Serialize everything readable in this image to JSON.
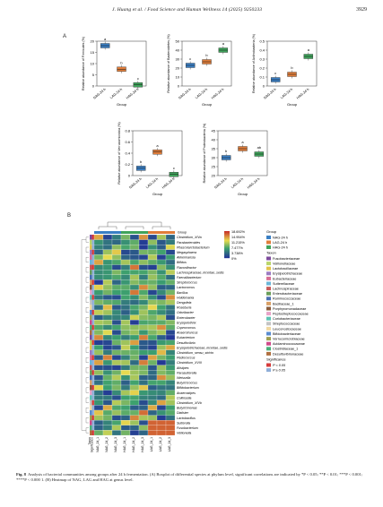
{
  "header": {
    "title": "J. Huang et al. / Food Science and Human Wellness 14 (2025) 9250233",
    "page_number": "3929"
  },
  "panel_a_label": "A",
  "panel_b_label": "B",
  "boxplots": [
    {
      "ylabel": "Relative abundance of Firmicutes (%)",
      "yticks": [
        0,
        5,
        10,
        15,
        20
      ],
      "ymax": 20,
      "groups": [
        "NAG-24 h",
        "LAG-24 h",
        "HAG-24 h"
      ],
      "xlabel": "Group",
      "medians": [
        18,
        7.5,
        0.5
      ],
      "letters": [
        "a",
        "b",
        "c"
      ]
    },
    {
      "ylabel": "Relative abundance of Bacteroidetes (%)",
      "yticks": [
        0,
        10,
        20,
        30,
        40,
        50
      ],
      "ymax": 50,
      "groups": [
        "NAG-24 h",
        "LAG-24 h",
        "HAG-24 h"
      ],
      "xlabel": "Group",
      "medians": [
        23,
        27,
        40
      ],
      "letters": [
        "c",
        "b",
        "a"
      ]
    },
    {
      "ylabel": "Relative abundance of Actinobacteria (%)",
      "yticks": [
        0.0,
        0.1,
        0.2,
        0.3,
        0.4,
        0.5
      ],
      "ymax": 0.5,
      "groups": [
        "NAG-24 h",
        "LAG-24 h",
        "HAG-24 h"
      ],
      "xlabel": "Group",
      "medians": [
        0.07,
        0.13,
        0.33
      ],
      "letters": [
        "c",
        "b",
        "a"
      ]
    },
    {
      "ylabel": "Relative abundance of Verrucomicrobia (%)",
      "yticks": [
        0.0,
        0.2,
        0.4,
        0.6,
        0.8
      ],
      "ymax": 0.8,
      "groups": [
        "NAG-24 h",
        "LAG-24 h",
        "HAG-24 h"
      ],
      "xlabel": "Group",
      "medians": [
        0.13,
        0.42,
        0.02
      ],
      "letters": [
        "b",
        "a",
        "c"
      ]
    },
    {
      "ylabel": "Relative abundance of Proteobacteria (%)",
      "yticks": [
        20,
        25,
        30,
        35,
        40,
        45
      ],
      "ymax": 45,
      "ymin": 20,
      "groups": [
        "NAG-24 h",
        "LAG-24 h",
        "HAG-24 h"
      ],
      "xlabel": "Group",
      "medians": [
        30,
        35,
        32
      ],
      "letters": [
        "b",
        "a",
        "ab"
      ]
    }
  ],
  "heatmap": {
    "genera": [
      "Clostridium_XIVa",
      "Parabacteroides",
      "Phascolarctobacterium",
      "Megasphaera",
      "Akkermansia",
      "Bifidus",
      "Flavonifractor",
      "Lachnospiraceae_incertae_sedis",
      "Faecalibacterium",
      "Streptococcus",
      "Lactococcus",
      "Bacillus",
      "Holdemania",
      "Dengofela",
      "Roseburia",
      "Odoribacter",
      "Enterobacter",
      "Erysipelothrix",
      "Coprococcus",
      "Anaerotruncus",
      "Eubacterium",
      "Desulfovibrio",
      "Erysipelotrichaceae_incertae_sedis",
      "Clostridium_sensu_stricto",
      "Pediococcus",
      "Clostridium_XVIII",
      "Alistipes",
      "Parasutterella",
      "Weissella",
      "Butyricicoccus",
      "Bifidobacterium",
      "Anaerostipes",
      "Collinsella",
      "Clostridium_XIVb",
      "Butyricimonas",
      "Dialister",
      "Lactobacillus",
      "Sutterella",
      "Fusobacterium",
      "Veillonella"
    ],
    "samples": [
      "NAG_24_1",
      "NAG_24_2",
      "NAG_24_3",
      "HAG_24_1",
      "HAG_24_2",
      "HAG_24_3",
      "LAG_24_1",
      "LAG_24_2",
      "LAG_24_3"
    ],
    "bottom_labels": [
      "Taxon",
      "Significance"
    ],
    "top_label": "Group",
    "scale_labels": [
      "18.692%",
      "14.954%",
      "11.215%",
      "7.477%",
      "3.738%",
      "0%"
    ],
    "legend_group_title": "Group",
    "legend_groups": [
      {
        "name": "NAG-24 h",
        "color": "#3a7fc4"
      },
      {
        "name": "LAG-24 h",
        "color": "#e07d3a"
      },
      {
        "name": "HAG-24 h",
        "color": "#3fa35b"
      }
    ],
    "legend_taxon_title": "Taxon",
    "legend_taxa": [
      {
        "name": "Fusobacteriaceae",
        "color": "#7e4b9e"
      },
      {
        "name": "Veillonellaceae",
        "color": "#b9d56a"
      },
      {
        "name": "Lactobacillaceae",
        "color": "#e3c24a"
      },
      {
        "name": "Erysipelotrichaceae",
        "color": "#9b7bc2"
      },
      {
        "name": "Eubacteriaceae",
        "color": "#d86f95"
      },
      {
        "name": "Sutterellaceae",
        "color": "#6bb6d8"
      },
      {
        "name": "Lachnospiraceae",
        "color": "#c85a5a"
      },
      {
        "name": "Enterobacteriaceae",
        "color": "#6a9e5a"
      },
      {
        "name": "Ruminococcaceae",
        "color": "#4a6fb2"
      },
      {
        "name": "Bacillaceae_1",
        "color": "#d9a066"
      },
      {
        "name": "Porphyromonadaceae",
        "color": "#8a5c3c"
      },
      {
        "name": "Peptostreptococcaceae",
        "color": "#e8a3c8"
      },
      {
        "name": "Coriobacteriaceae",
        "color": "#5ec3b4"
      },
      {
        "name": "Streptococcaceae",
        "color": "#c4c4c4"
      },
      {
        "name": "Leuconostocaceae",
        "color": "#f0d8a0"
      },
      {
        "name": "Bifidobacteriaceae",
        "color": "#5a8ccf"
      },
      {
        "name": "Verrucomicrobiaceae",
        "color": "#a0a050"
      },
      {
        "name": "Acidaminococcaceae",
        "color": "#d04a8a"
      },
      {
        "name": "Clostridiaceae_1",
        "color": "#4ab07a"
      },
      {
        "name": "Desulfovibrionaceae",
        "color": "#b07040"
      }
    ],
    "legend_sig_title": "Significance",
    "legend_sig": [
      {
        "name": "P < 0.05",
        "color": "#d63b3b"
      },
      {
        "name": "P ≥ 0.05",
        "color": "#8faed8"
      }
    ]
  },
  "caption": {
    "fig_label": "Fig. 8",
    "text": "Analysis of bacterial communities among groups after 24 h fermentation. (A) Boxplot of differential species at phylum level, significant correlations are indicated by *P < 0.05; **P < 0.01; ***P < 0.001; ****P < 0.000 1. (B) Heatmap of NAG, LAG and HAG at genus level."
  },
  "colors": {
    "nag": "#3a7fc4",
    "lag": "#e07d3a",
    "hag": "#3fa35b"
  }
}
